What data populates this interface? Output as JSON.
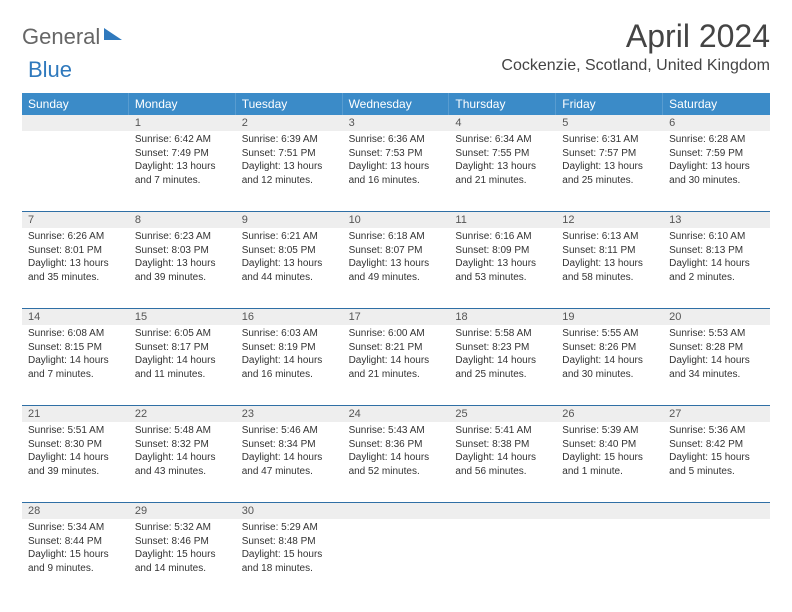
{
  "brand": {
    "part1": "General",
    "part2": "Blue"
  },
  "title": "April 2024",
  "location": "Cockenzie, Scotland, United Kingdom",
  "colors": {
    "header_bg": "#3b8bc8",
    "header_text": "#ffffff",
    "daynum_bg": "#eeeeee",
    "border": "#2f6fa5",
    "text": "#333333"
  },
  "dayNames": [
    "Sunday",
    "Monday",
    "Tuesday",
    "Wednesday",
    "Thursday",
    "Friday",
    "Saturday"
  ],
  "weeks": [
    [
      {
        "n": "",
        "sr": "",
        "ss": "",
        "dl": ""
      },
      {
        "n": "1",
        "sr": "Sunrise: 6:42 AM",
        "ss": "Sunset: 7:49 PM",
        "dl": "Daylight: 13 hours and 7 minutes."
      },
      {
        "n": "2",
        "sr": "Sunrise: 6:39 AM",
        "ss": "Sunset: 7:51 PM",
        "dl": "Daylight: 13 hours and 12 minutes."
      },
      {
        "n": "3",
        "sr": "Sunrise: 6:36 AM",
        "ss": "Sunset: 7:53 PM",
        "dl": "Daylight: 13 hours and 16 minutes."
      },
      {
        "n": "4",
        "sr": "Sunrise: 6:34 AM",
        "ss": "Sunset: 7:55 PM",
        "dl": "Daylight: 13 hours and 21 minutes."
      },
      {
        "n": "5",
        "sr": "Sunrise: 6:31 AM",
        "ss": "Sunset: 7:57 PM",
        "dl": "Daylight: 13 hours and 25 minutes."
      },
      {
        "n": "6",
        "sr": "Sunrise: 6:28 AM",
        "ss": "Sunset: 7:59 PM",
        "dl": "Daylight: 13 hours and 30 minutes."
      }
    ],
    [
      {
        "n": "7",
        "sr": "Sunrise: 6:26 AM",
        "ss": "Sunset: 8:01 PM",
        "dl": "Daylight: 13 hours and 35 minutes."
      },
      {
        "n": "8",
        "sr": "Sunrise: 6:23 AM",
        "ss": "Sunset: 8:03 PM",
        "dl": "Daylight: 13 hours and 39 minutes."
      },
      {
        "n": "9",
        "sr": "Sunrise: 6:21 AM",
        "ss": "Sunset: 8:05 PM",
        "dl": "Daylight: 13 hours and 44 minutes."
      },
      {
        "n": "10",
        "sr": "Sunrise: 6:18 AM",
        "ss": "Sunset: 8:07 PM",
        "dl": "Daylight: 13 hours and 49 minutes."
      },
      {
        "n": "11",
        "sr": "Sunrise: 6:16 AM",
        "ss": "Sunset: 8:09 PM",
        "dl": "Daylight: 13 hours and 53 minutes."
      },
      {
        "n": "12",
        "sr": "Sunrise: 6:13 AM",
        "ss": "Sunset: 8:11 PM",
        "dl": "Daylight: 13 hours and 58 minutes."
      },
      {
        "n": "13",
        "sr": "Sunrise: 6:10 AM",
        "ss": "Sunset: 8:13 PM",
        "dl": "Daylight: 14 hours and 2 minutes."
      }
    ],
    [
      {
        "n": "14",
        "sr": "Sunrise: 6:08 AM",
        "ss": "Sunset: 8:15 PM",
        "dl": "Daylight: 14 hours and 7 minutes."
      },
      {
        "n": "15",
        "sr": "Sunrise: 6:05 AM",
        "ss": "Sunset: 8:17 PM",
        "dl": "Daylight: 14 hours and 11 minutes."
      },
      {
        "n": "16",
        "sr": "Sunrise: 6:03 AM",
        "ss": "Sunset: 8:19 PM",
        "dl": "Daylight: 14 hours and 16 minutes."
      },
      {
        "n": "17",
        "sr": "Sunrise: 6:00 AM",
        "ss": "Sunset: 8:21 PM",
        "dl": "Daylight: 14 hours and 21 minutes."
      },
      {
        "n": "18",
        "sr": "Sunrise: 5:58 AM",
        "ss": "Sunset: 8:23 PM",
        "dl": "Daylight: 14 hours and 25 minutes."
      },
      {
        "n": "19",
        "sr": "Sunrise: 5:55 AM",
        "ss": "Sunset: 8:26 PM",
        "dl": "Daylight: 14 hours and 30 minutes."
      },
      {
        "n": "20",
        "sr": "Sunrise: 5:53 AM",
        "ss": "Sunset: 8:28 PM",
        "dl": "Daylight: 14 hours and 34 minutes."
      }
    ],
    [
      {
        "n": "21",
        "sr": "Sunrise: 5:51 AM",
        "ss": "Sunset: 8:30 PM",
        "dl": "Daylight: 14 hours and 39 minutes."
      },
      {
        "n": "22",
        "sr": "Sunrise: 5:48 AM",
        "ss": "Sunset: 8:32 PM",
        "dl": "Daylight: 14 hours and 43 minutes."
      },
      {
        "n": "23",
        "sr": "Sunrise: 5:46 AM",
        "ss": "Sunset: 8:34 PM",
        "dl": "Daylight: 14 hours and 47 minutes."
      },
      {
        "n": "24",
        "sr": "Sunrise: 5:43 AM",
        "ss": "Sunset: 8:36 PM",
        "dl": "Daylight: 14 hours and 52 minutes."
      },
      {
        "n": "25",
        "sr": "Sunrise: 5:41 AM",
        "ss": "Sunset: 8:38 PM",
        "dl": "Daylight: 14 hours and 56 minutes."
      },
      {
        "n": "26",
        "sr": "Sunrise: 5:39 AM",
        "ss": "Sunset: 8:40 PM",
        "dl": "Daylight: 15 hours and 1 minute."
      },
      {
        "n": "27",
        "sr": "Sunrise: 5:36 AM",
        "ss": "Sunset: 8:42 PM",
        "dl": "Daylight: 15 hours and 5 minutes."
      }
    ],
    [
      {
        "n": "28",
        "sr": "Sunrise: 5:34 AM",
        "ss": "Sunset: 8:44 PM",
        "dl": "Daylight: 15 hours and 9 minutes."
      },
      {
        "n": "29",
        "sr": "Sunrise: 5:32 AM",
        "ss": "Sunset: 8:46 PM",
        "dl": "Daylight: 15 hours and 14 minutes."
      },
      {
        "n": "30",
        "sr": "Sunrise: 5:29 AM",
        "ss": "Sunset: 8:48 PM",
        "dl": "Daylight: 15 hours and 18 minutes."
      },
      {
        "n": "",
        "sr": "",
        "ss": "",
        "dl": ""
      },
      {
        "n": "",
        "sr": "",
        "ss": "",
        "dl": ""
      },
      {
        "n": "",
        "sr": "",
        "ss": "",
        "dl": ""
      },
      {
        "n": "",
        "sr": "",
        "ss": "",
        "dl": ""
      }
    ]
  ]
}
